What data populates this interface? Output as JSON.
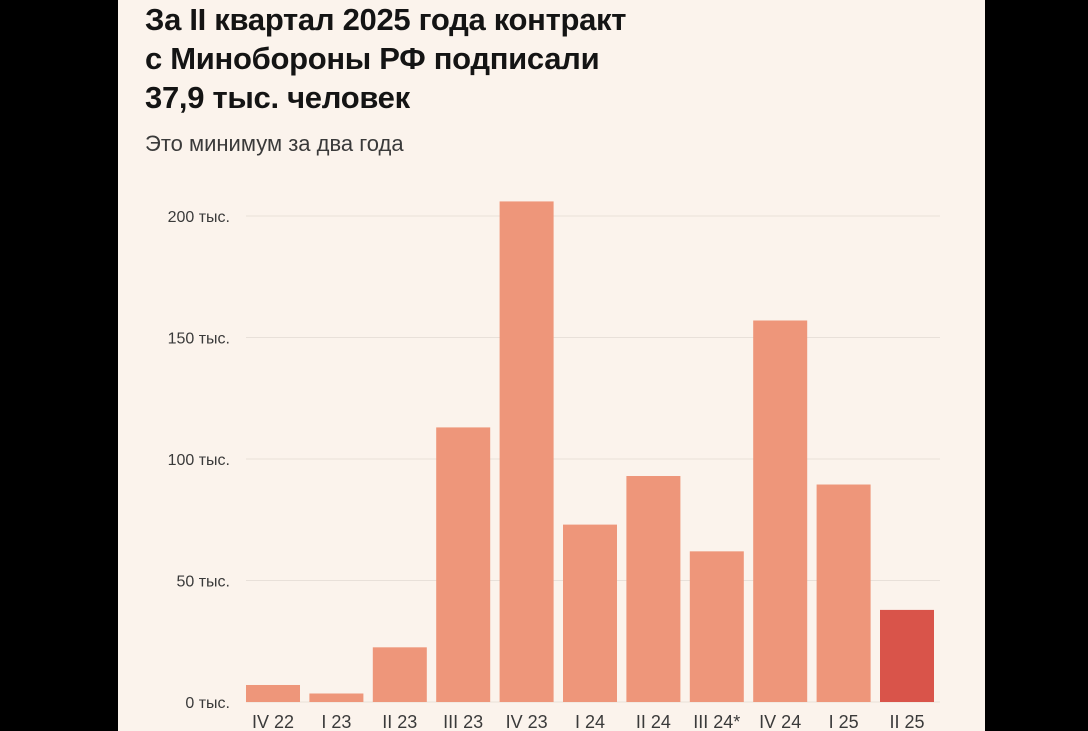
{
  "header": {
    "title_lines": [
      "За II квартал 2025 года контракт",
      "с Минобороны РФ подписали",
      "37,9 тыс. человек"
    ],
    "subtitle": "Это минимум за два года"
  },
  "colors": {
    "bar": "#ee967a",
    "highlight": "#d9544a",
    "grid": "#e8e0d9",
    "background": "#fbf3ec"
  },
  "chart_data": {
    "type": "bar",
    "title": "За II квартал 2025 года контракт с Минобороны РФ подписали 37,9 тыс. человек",
    "subtitle": "Это минимум за два года",
    "xlabel": "",
    "ylabel": "",
    "categories": [
      "IV 22",
      "I 23",
      "II 23",
      "III 23",
      "IV 23",
      "I 24",
      "II 24",
      "III 24*",
      "IV 24",
      "I 25",
      "II 25"
    ],
    "values": [
      7,
      3.5,
      22.5,
      113,
      206,
      73,
      93,
      62,
      157,
      89.5,
      37.9
    ],
    "highlight_index": 10,
    "ylim": [
      0,
      200
    ],
    "yticks": [
      0,
      50,
      100,
      150,
      200
    ],
    "ytick_labels": [
      "0 тыс.",
      "50 тыс.",
      "100 тыс.",
      "150 тыс.",
      "200 тыс."
    ],
    "grid": true,
    "legend": "none"
  }
}
